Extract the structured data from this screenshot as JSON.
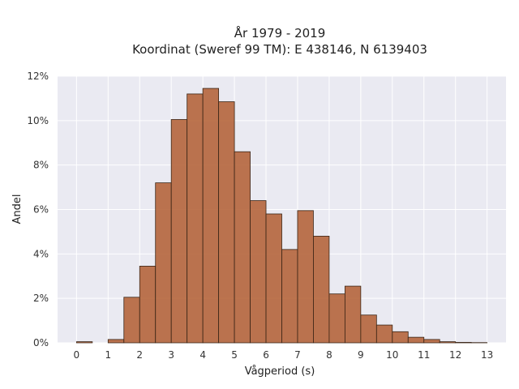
{
  "chart_data": {
    "type": "bar",
    "title_line1": "År 1979 - 2019",
    "title_line2": "Koordinat (Sweref 99 TM): E 438146, N 6139403",
    "xlabel": "Vågperiod (s)",
    "ylabel": "Andel",
    "bin_width": 0.5,
    "bin_starts": [
      0,
      0.5,
      1,
      1.5,
      2,
      2.5,
      3,
      3.5,
      4,
      4.5,
      5,
      5.5,
      6,
      6.5,
      7,
      7.5,
      8,
      8.5,
      9,
      9.5,
      10,
      10.5,
      11,
      11.5,
      12,
      12.5
    ],
    "values": [
      0.05,
      0.0,
      0.15,
      2.05,
      3.45,
      7.2,
      10.05,
      11.2,
      11.45,
      10.85,
      8.6,
      6.4,
      5.8,
      4.2,
      5.95,
      4.8,
      2.2,
      2.55,
      1.25,
      0.8,
      0.5,
      0.25,
      0.15,
      0.05,
      0.02,
      0.01
    ],
    "xticks": [
      "0",
      "1",
      "2",
      "3",
      "4",
      "5",
      "6",
      "7",
      "8",
      "9",
      "10",
      "11",
      "12",
      "13"
    ],
    "xlim": [
      -0.6,
      13.6
    ],
    "yticks": [
      "0%",
      "2%",
      "4%",
      "6%",
      "8%",
      "10%",
      "12%"
    ],
    "ylim": [
      0,
      12
    ],
    "grid": true,
    "bar_color": "#b5653c",
    "edge_color": "#3a2516",
    "background": "#eaeaf2"
  }
}
